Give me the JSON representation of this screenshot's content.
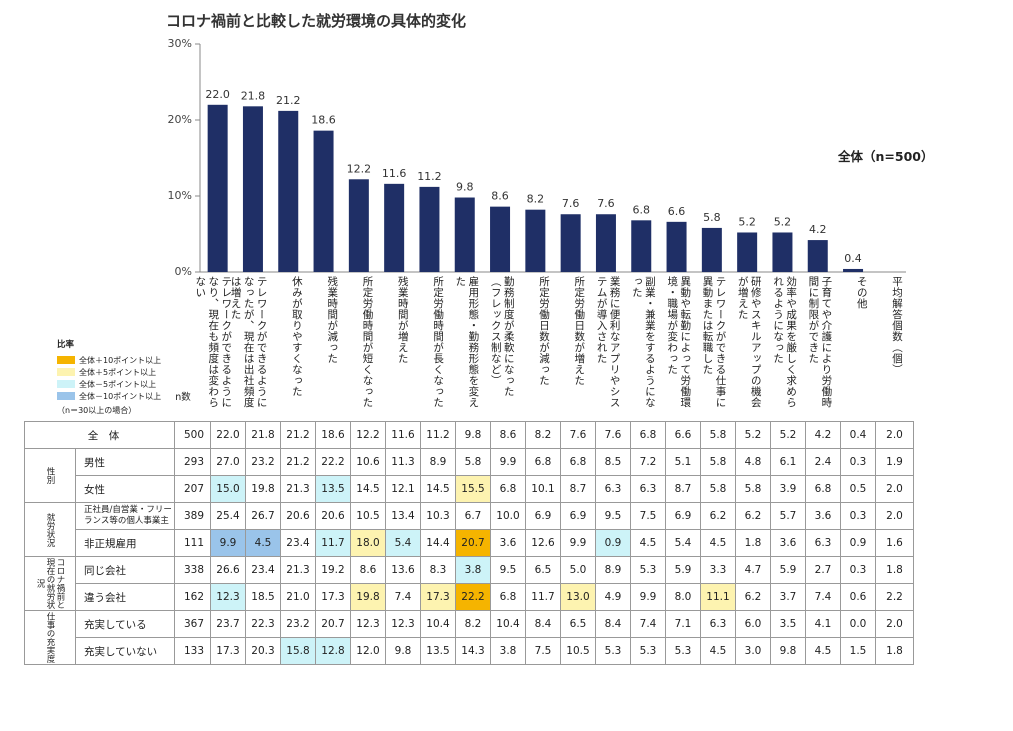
{
  "title": "コロナ禍前と比較した就労環境の具体的変化",
  "overall_label": "全体（n=500）",
  "chart_data": {
    "type": "bar",
    "title": "コロナ禍前と比較した就労環境の具体的変化",
    "ylim": [
      0,
      30
    ],
    "yticks": [
      "0%",
      "10%",
      "20%",
      "30%"
    ],
    "bar_color": "#1f2f66",
    "categories": [
      "テレワークができるようになり、現在も頻度は変わらない",
      "テレワークができるようになったが、現在は出社頻度は増えた",
      "休みが取りやすくなった",
      "残業時間が減った",
      "所定労働時間が短くなった",
      "残業時間が増えた",
      "所定労働時間が長くなった",
      "雇用形態・勤務形態を変えた",
      "勤務制度が柔軟になった（フレックス制など）",
      "所定労働日数が減った",
      "所定労働日数が増えた",
      "業務に便利なアプリやシステムが導入された",
      "副業・兼業をするようになった",
      "異動や転勤によって労働環境・職場が変わった",
      "テレワークができる仕事に異動または転職した",
      "研修やスキルアップの機会が増えた",
      "効率や成果を厳しく求められるようになった",
      "子育てや介護により労働時間に制限ができた",
      "その他"
    ],
    "values": [
      22.0,
      21.8,
      21.2,
      18.6,
      12.2,
      11.6,
      11.2,
      9.8,
      8.6,
      8.2,
      7.6,
      7.6,
      6.8,
      6.6,
      5.8,
      5.2,
      5.2,
      4.2,
      0.4
    ],
    "value_labels": [
      "22.0",
      "21.8",
      "21.2",
      "18.6",
      "12.2",
      "11.6",
      "11.2",
      "9.8",
      "8.6",
      "8.2",
      "7.6",
      "7.6",
      "6.8",
      "6.6",
      "5.8",
      "5.2",
      "5.2",
      "4.2",
      "0.4"
    ]
  },
  "extra_column": "平均解答個数（個）",
  "n_header": "n数",
  "legend": {
    "title": "比率",
    "items": [
      {
        "label": "全体＋10ポイント以上",
        "color": "#f5b400"
      },
      {
        "label": "全体＋5ポイント以上",
        "color": "#fdf3b0"
      },
      {
        "label": "全体－5ポイント以上",
        "color": "#cdf3f8"
      },
      {
        "label": "全体－10ポイント以上",
        "color": "#9ac4ea"
      }
    ],
    "note": "（n＝30以上の場合）"
  },
  "table": {
    "rows": [
      {
        "group": "",
        "label": "全　体",
        "n": "500",
        "values": [
          "22.0",
          "21.8",
          "21.2",
          "18.6",
          "12.2",
          "11.6",
          "11.2",
          "9.8",
          "8.6",
          "8.2",
          "7.6",
          "7.6",
          "6.8",
          "6.6",
          "5.8",
          "5.2",
          "5.2",
          "4.2",
          "0.4",
          "2.0"
        ],
        "hl": [
          0,
          0,
          0,
          0,
          0,
          0,
          0,
          0,
          0,
          0,
          0,
          0,
          0,
          0,
          0,
          0,
          0,
          0,
          0,
          0
        ]
      },
      {
        "group": "性別",
        "label": "男性",
        "n": "293",
        "values": [
          "27.0",
          "23.2",
          "21.2",
          "22.2",
          "10.6",
          "11.3",
          "8.9",
          "5.8",
          "9.9",
          "6.8",
          "6.8",
          "8.5",
          "7.2",
          "5.1",
          "5.8",
          "4.8",
          "6.1",
          "2.4",
          "0.3",
          "1.9"
        ],
        "hl": [
          0,
          0,
          0,
          0,
          0,
          0,
          0,
          0,
          0,
          0,
          0,
          0,
          0,
          0,
          0,
          0,
          0,
          0,
          0,
          0
        ]
      },
      {
        "group": "",
        "label": "女性",
        "n": "207",
        "values": [
          "15.0",
          "19.8",
          "21.3",
          "13.5",
          "14.5",
          "12.1",
          "14.5",
          "15.5",
          "6.8",
          "10.1",
          "8.7",
          "6.3",
          "6.3",
          "8.7",
          "5.8",
          "5.8",
          "3.9",
          "6.8",
          "0.5",
          "2.0"
        ],
        "hl": [
          3,
          0,
          0,
          3,
          0,
          0,
          0,
          2,
          0,
          0,
          0,
          0,
          0,
          0,
          0,
          0,
          0,
          0,
          0,
          0
        ]
      },
      {
        "group": "就労状況",
        "label": "正社員/自営業・フリーランス等の個人事業主",
        "n": "389",
        "values": [
          "25.4",
          "26.7",
          "20.6",
          "20.6",
          "10.5",
          "13.4",
          "10.3",
          "6.7",
          "10.0",
          "6.9",
          "6.9",
          "9.5",
          "7.5",
          "6.9",
          "6.2",
          "6.2",
          "5.7",
          "3.6",
          "0.3",
          "2.0"
        ],
        "hl": [
          0,
          0,
          0,
          0,
          0,
          0,
          0,
          0,
          0,
          0,
          0,
          0,
          0,
          0,
          0,
          0,
          0,
          0,
          0,
          0
        ]
      },
      {
        "group": "",
        "label": "非正規雇用",
        "n": "111",
        "values": [
          "9.9",
          "4.5",
          "23.4",
          "11.7",
          "18.0",
          "5.4",
          "14.4",
          "20.7",
          "3.6",
          "12.6",
          "9.9",
          "0.9",
          "4.5",
          "5.4",
          "4.5",
          "1.8",
          "3.6",
          "6.3",
          "0.9",
          "1.6"
        ],
        "hl": [
          4,
          4,
          0,
          3,
          2,
          3,
          0,
          1,
          0,
          0,
          0,
          3,
          0,
          0,
          0,
          0,
          0,
          0,
          0,
          0
        ]
      },
      {
        "group": "コロナ禍前と現在の就労状況",
        "label": "同じ会社",
        "n": "338",
        "values": [
          "26.6",
          "23.4",
          "21.3",
          "19.2",
          "8.6",
          "13.6",
          "8.3",
          "3.8",
          "9.5",
          "6.5",
          "5.0",
          "8.9",
          "5.3",
          "5.9",
          "3.3",
          "4.7",
          "5.9",
          "2.7",
          "0.3",
          "1.8"
        ],
        "hl": [
          0,
          0,
          0,
          0,
          0,
          0,
          0,
          3,
          0,
          0,
          0,
          0,
          0,
          0,
          0,
          0,
          0,
          0,
          0,
          0
        ]
      },
      {
        "group": "",
        "label": "違う会社",
        "n": "162",
        "values": [
          "12.3",
          "18.5",
          "21.0",
          "17.3",
          "19.8",
          "7.4",
          "17.3",
          "22.2",
          "6.8",
          "11.7",
          "13.0",
          "4.9",
          "9.9",
          "8.0",
          "11.1",
          "6.2",
          "3.7",
          "7.4",
          "0.6",
          "2.2"
        ],
        "hl": [
          3,
          0,
          0,
          0,
          2,
          0,
          2,
          1,
          0,
          0,
          2,
          0,
          0,
          0,
          2,
          0,
          0,
          0,
          0,
          0
        ]
      },
      {
        "group": "仕事の充実度",
        "label": "充実している",
        "n": "367",
        "values": [
          "23.7",
          "22.3",
          "23.2",
          "20.7",
          "12.3",
          "12.3",
          "10.4",
          "8.2",
          "10.4",
          "8.4",
          "6.5",
          "8.4",
          "7.4",
          "7.1",
          "6.3",
          "6.0",
          "3.5",
          "4.1",
          "0.0",
          "2.0"
        ],
        "hl": [
          0,
          0,
          0,
          0,
          0,
          0,
          0,
          0,
          0,
          0,
          0,
          0,
          0,
          0,
          0,
          0,
          0,
          0,
          0,
          0
        ]
      },
      {
        "group": "",
        "label": "充実していない",
        "n": "133",
        "values": [
          "17.3",
          "20.3",
          "15.8",
          "12.8",
          "12.0",
          "9.8",
          "13.5",
          "14.3",
          "3.8",
          "7.5",
          "10.5",
          "5.3",
          "5.3",
          "5.3",
          "4.5",
          "3.0",
          "9.8",
          "4.5",
          "1.5",
          "1.8"
        ],
        "hl": [
          0,
          0,
          3,
          3,
          0,
          0,
          0,
          0,
          0,
          0,
          0,
          0,
          0,
          0,
          0,
          0,
          0,
          0,
          0,
          0
        ]
      }
    ]
  }
}
